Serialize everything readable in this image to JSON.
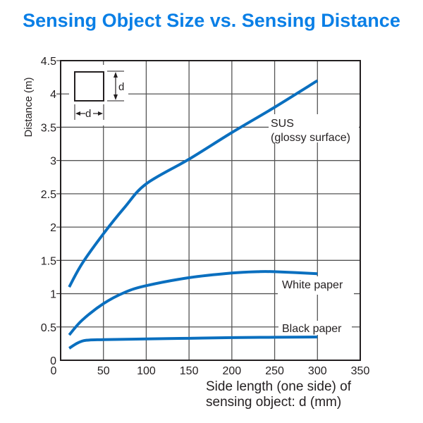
{
  "title": "Sensing Object Size vs. Sensing Distance",
  "colors": {
    "title": "#0a7fe6",
    "series": "#0a6fbf",
    "grid": "#555555",
    "axis": "#231f20"
  },
  "chart_data": {
    "type": "line",
    "title": "Sensing Object Size vs. Sensing Distance",
    "xlabel": "Side length (one side) of sensing object: d (mm)",
    "xlabel_lines": [
      "Side length (one side) of",
      "sensing object: d (mm)"
    ],
    "ylabel": "Distance (m)",
    "xlim": [
      0,
      350
    ],
    "ylim": [
      0,
      4.5
    ],
    "x_ticks": [
      0,
      50,
      100,
      150,
      200,
      250,
      300,
      350
    ],
    "x_tick_labels": [
      "0",
      "50",
      "100",
      "150",
      "200",
      "250",
      "300",
      "350"
    ],
    "y_ticks": [
      0,
      0.5,
      1,
      1.5,
      2,
      2.5,
      3,
      3.5,
      4,
      4.5
    ],
    "y_tick_labels": [
      "0",
      "0.5",
      "1",
      "1.5",
      "2",
      "2.5",
      "3",
      "3.5",
      "4",
      "4.5"
    ],
    "grid": true,
    "legend": "inline labels next to curves",
    "series": [
      {
        "name": "SUS (glossy surface)",
        "label_lines": [
          "SUS",
          "(glossy surface)"
        ],
        "x": [
          10,
          25,
          50,
          75,
          100,
          150,
          200,
          250,
          300
        ],
        "y": [
          1.1,
          1.45,
          1.9,
          2.3,
          2.65,
          3.02,
          3.42,
          3.8,
          4.2
        ]
      },
      {
        "name": "White paper",
        "label_lines": [
          "White paper"
        ],
        "x": [
          10,
          25,
          50,
          75,
          100,
          150,
          200,
          230,
          250,
          300
        ],
        "y": [
          0.38,
          0.6,
          0.85,
          1.02,
          1.12,
          1.24,
          1.31,
          1.33,
          1.33,
          1.3
        ]
      },
      {
        "name": "Black paper",
        "label_lines": [
          "Black paper"
        ],
        "x": [
          10,
          20,
          30,
          50,
          100,
          150,
          200,
          250,
          300
        ],
        "y": [
          0.18,
          0.26,
          0.3,
          0.31,
          0.32,
          0.33,
          0.34,
          0.345,
          0.35
        ]
      }
    ],
    "inset": {
      "description": "square sensing object with side length d",
      "width_label": "d",
      "height_label": "d"
    }
  }
}
